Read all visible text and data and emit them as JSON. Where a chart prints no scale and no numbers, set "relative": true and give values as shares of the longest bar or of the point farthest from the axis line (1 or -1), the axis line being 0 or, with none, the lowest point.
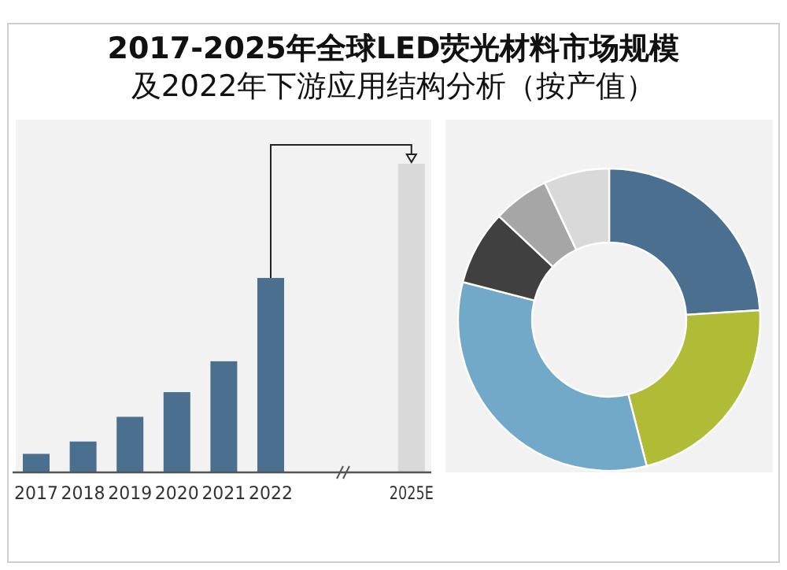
{
  "chart_data": [
    {
      "type": "bar",
      "title": "2017-2025年全球LED荧光材料市场规模",
      "subtitle": "及2022年下游应用结构分析（按产值）",
      "relative": true,
      "categories": [
        "2017",
        "2018",
        "2019",
        "2020",
        "2021",
        "2022",
        null,
        null,
        "2025E"
      ],
      "values": [
        0.06,
        0.1,
        0.18,
        0.26,
        0.36,
        0.63,
        null,
        null,
        1
      ],
      "colors": [
        "#4a6f8f",
        "#4a6f8f",
        "#4a6f8f",
        "#4a6f8f",
        "#4a6f8f",
        "#4a6f8f",
        null,
        null,
        "#d9d9d9"
      ]
    },
    {
      "type": "donut",
      "categories": [
        null,
        null,
        null,
        null,
        null,
        null
      ],
      "values": [
        24,
        22,
        33,
        8,
        6,
        7
      ],
      "colors": [
        "#4a6f8f",
        "#b0bc35",
        "#72a8c8",
        "#404040",
        "#a6a6a6",
        "#d9d9d9"
      ]
    }
  ]
}
